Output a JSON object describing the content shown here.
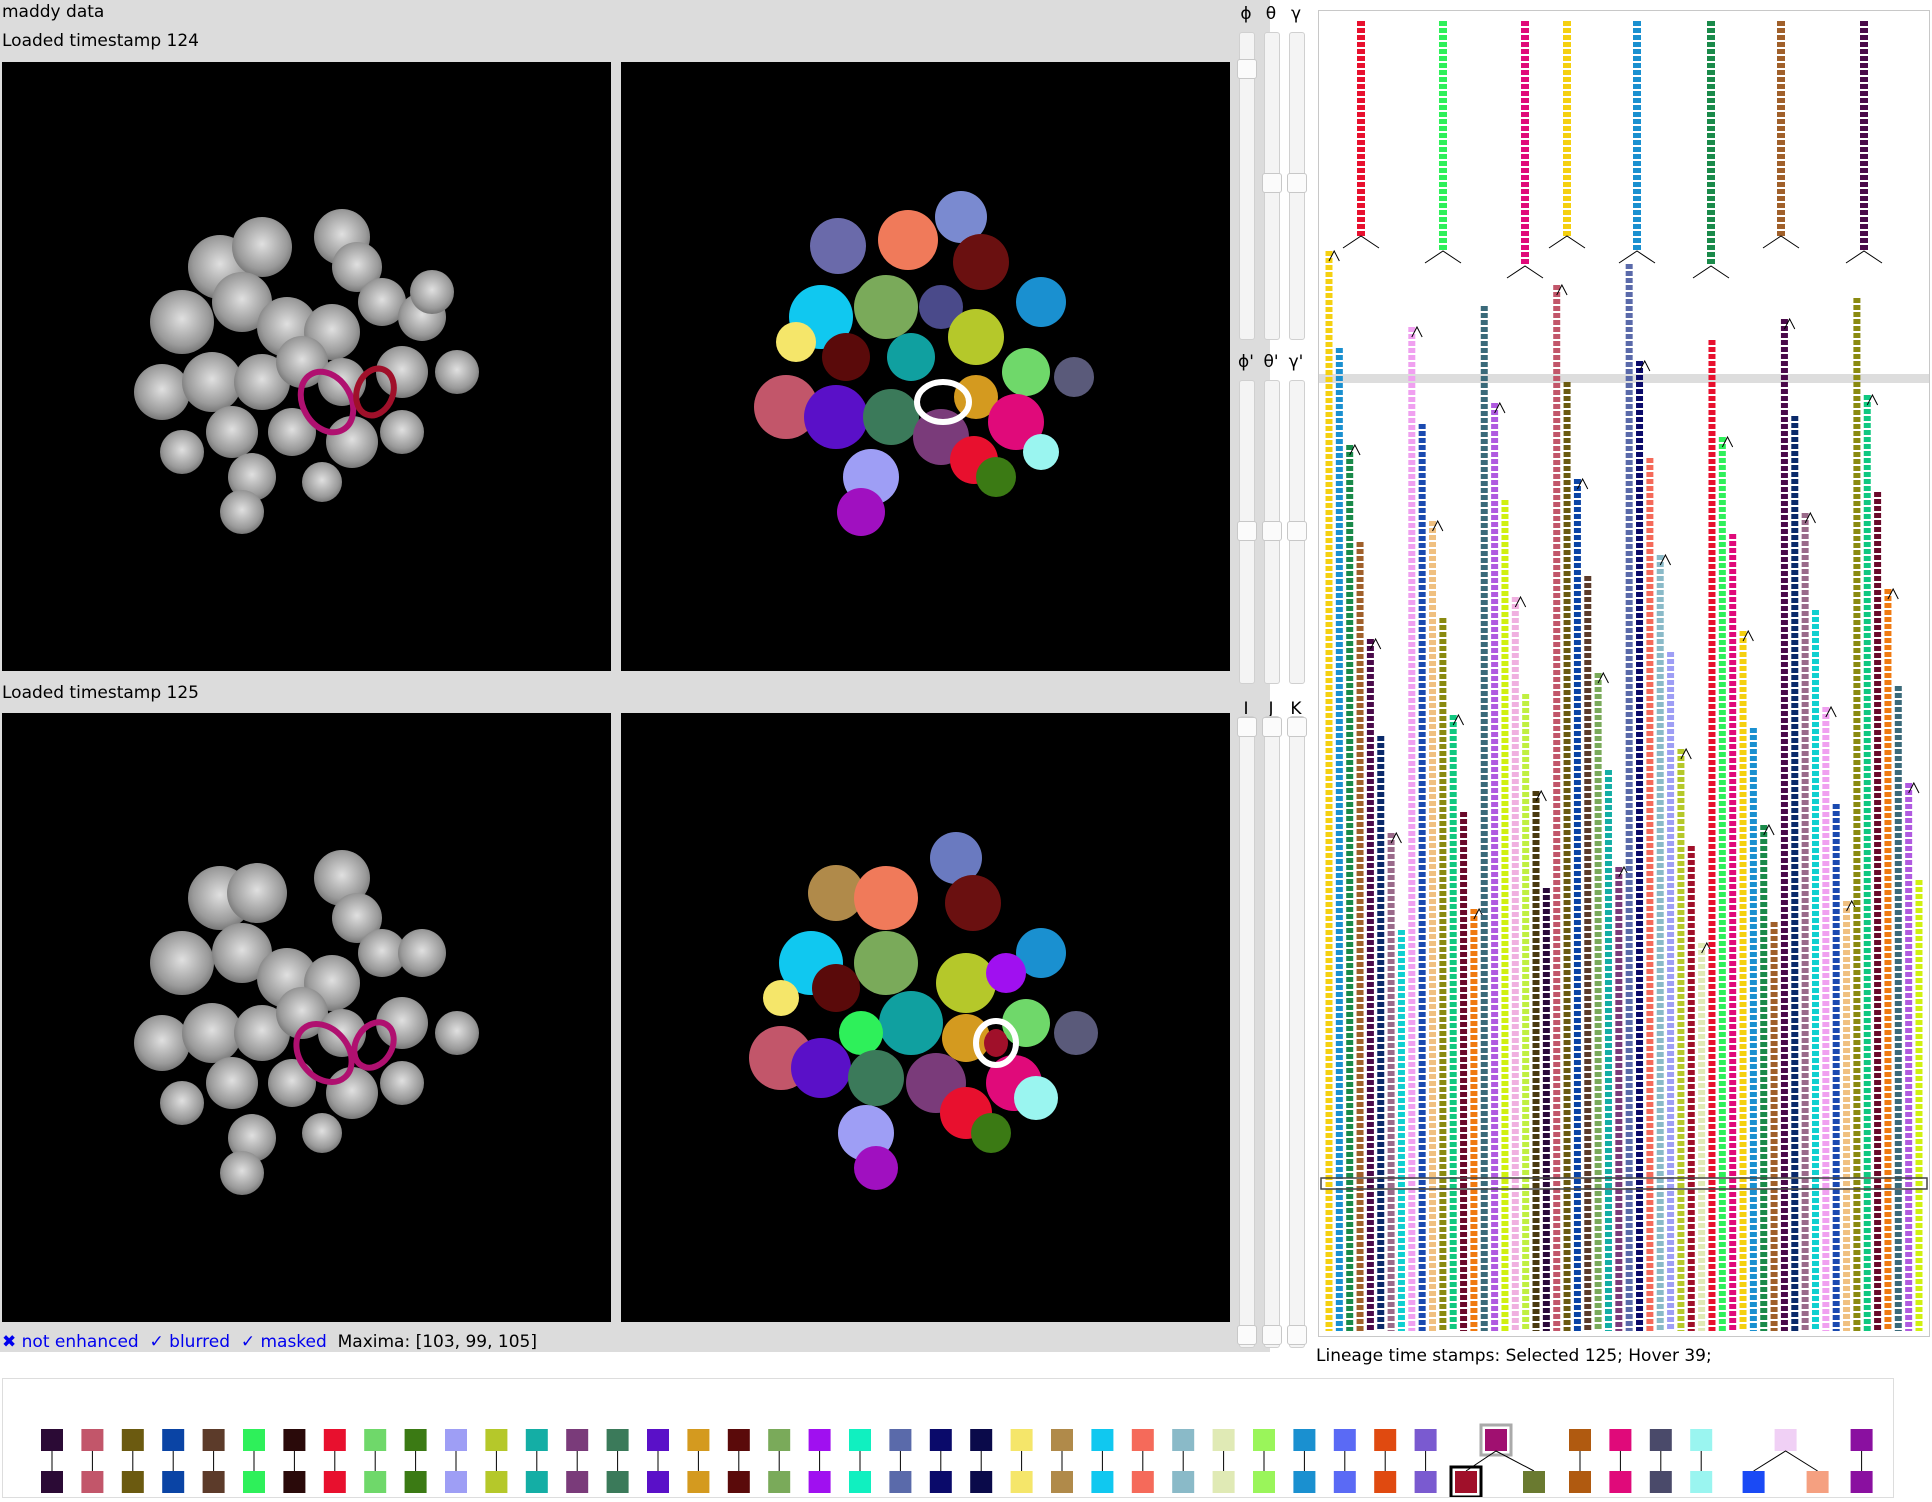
{
  "header": {
    "dataset_title": "maddy data",
    "top_timestamp_label": "Loaded timestamp 124",
    "bottom_timestamp_label": "Loaded timestamp 125"
  },
  "sliders": {
    "rotation_labels": [
      "ϕ",
      "θ",
      "γ"
    ],
    "rotation_prime_labels": [
      "ϕ'",
      "θ'",
      "γ'"
    ],
    "index_labels": [
      "I",
      "J",
      "K"
    ]
  },
  "status_bar": {
    "enhance_toggle": "✖ not enhanced",
    "blur_toggle": "✓ blurred",
    "mask_toggle": "✓ masked",
    "maxima_text": "Maxima: [103, 99, 105]"
  },
  "lineage": {
    "caption": "Lineage time stamps: Selected 125; Hover 39;"
  },
  "palette": {
    "colors": [
      "#2b0a35",
      "#c2566a",
      "#6b5a10",
      "#0a44a5",
      "#5c3b2a",
      "#2ef05a",
      "#2a0a0a",
      "#e8102e",
      "#6fd86a",
      "#3b7a14",
      "#9e9ef5",
      "#b5c82a",
      "#14aea5",
      "#7a3b7a",
      "#3b7a5a",
      "#5a10c8",
      "#d49a1f",
      "#5a0a0a",
      "#7aaa5a",
      "#a010f0",
      "#10f0c0",
      "#5a6aaa",
      "#0a0a6a",
      "#0a0a4a",
      "#f5e66a",
      "#b08a4a",
      "#10c8f0",
      "#f56a5a",
      "#8abac8",
      "#e0eab5",
      "#9af55a",
      "#1a90d0",
      "#5a6af5",
      "#e04a10",
      "#7a5ad0"
    ],
    "selected_parent_color": "#a01070",
    "selected_child_color": "#a0102a",
    "sibling_child_color": "#6a7a30",
    "tail_colors": [
      "#b05a10",
      "#e00a7a",
      "#4a4a6a",
      "#9af5f0"
    ],
    "split_parent_color": "#f0d0f5",
    "split_children_colors": [
      "#1a4af5",
      "#f5a080"
    ],
    "last_color": "#8a10a0"
  }
}
